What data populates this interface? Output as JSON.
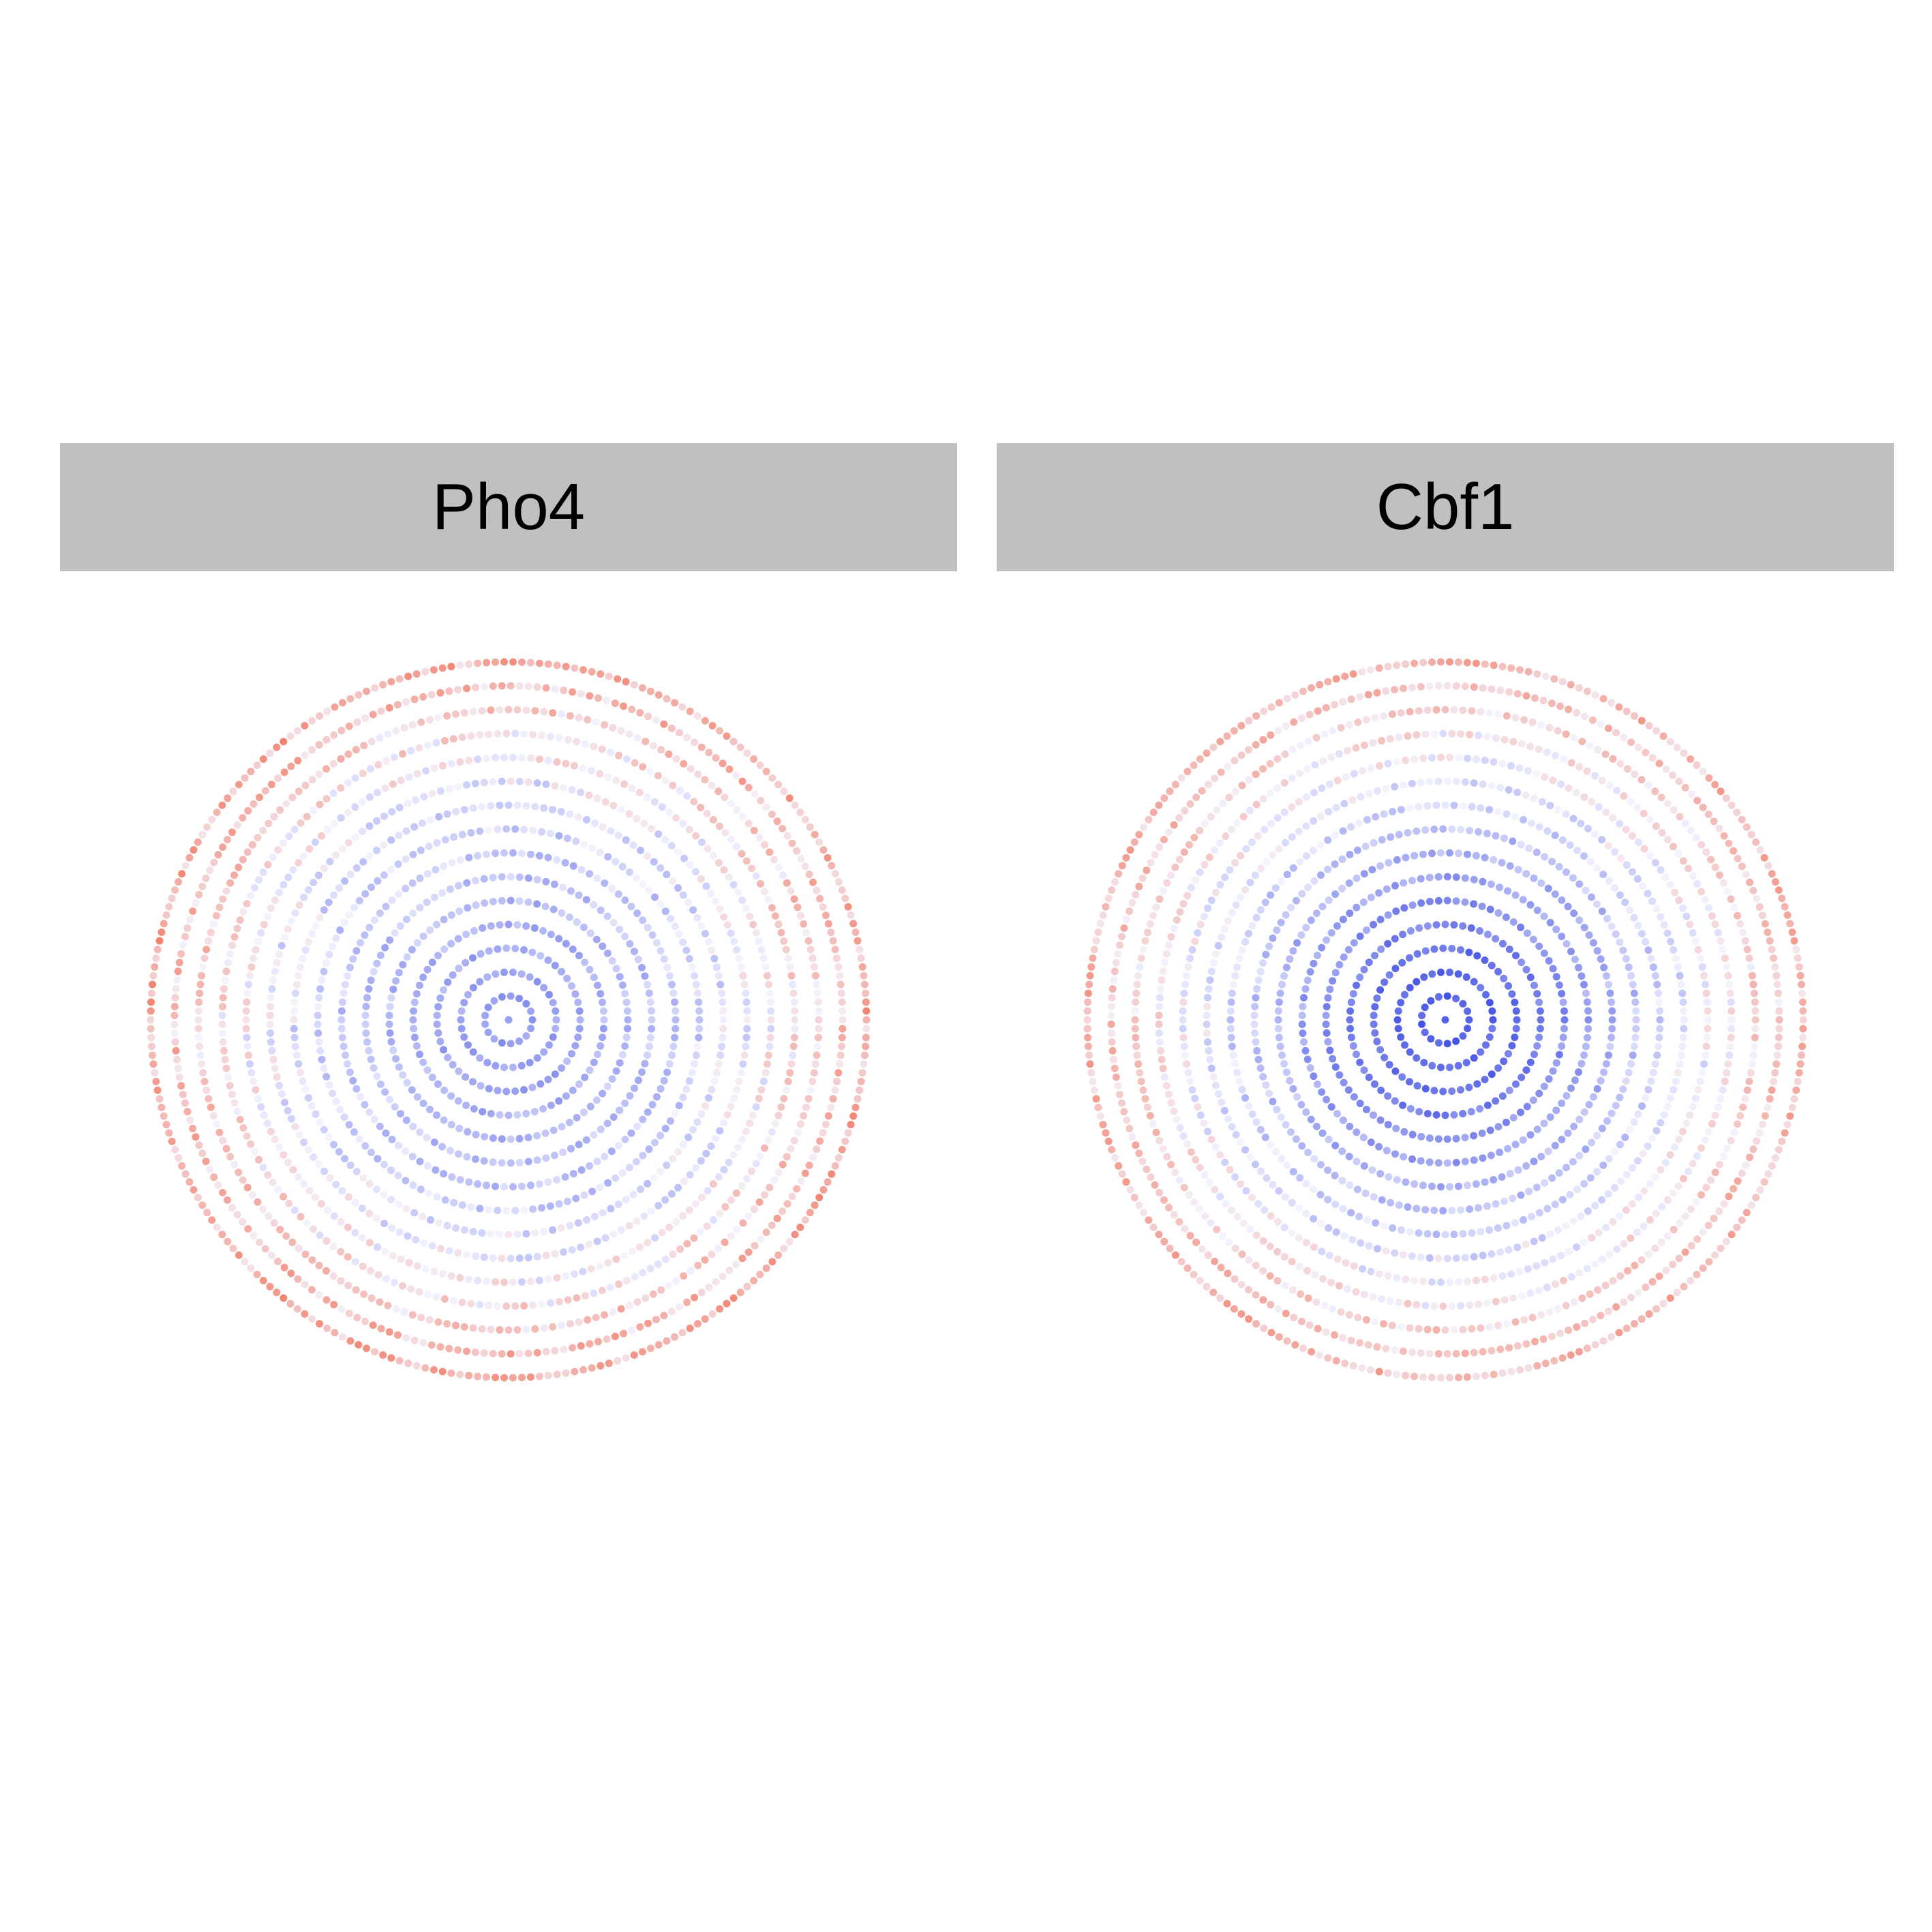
{
  "chart_data": {
    "type": "scatter",
    "layout": "facets",
    "coordinate_system": "polar",
    "grid": false,
    "axes_shown": false,
    "legend": "none",
    "colors": {
      "low": "#2233dd",
      "mid": "#f2f2ff",
      "high": "#f04a2a"
    },
    "ring_radii": [
      0,
      1,
      2,
      3,
      4,
      5,
      6,
      7,
      8,
      9,
      10,
      11,
      12,
      13,
      14,
      15
    ],
    "panels": [
      {
        "title": "Pho4",
        "ring_values": [
          -0.55,
          -0.55,
          -0.5,
          -0.45,
          -0.4,
          -0.35,
          -0.3,
          -0.25,
          -0.2,
          -0.12,
          -0.05,
          0.05,
          0.15,
          0.25,
          0.35,
          0.45
        ],
        "noise": 0.35
      },
      {
        "title": "Cbf1",
        "ring_values": [
          -0.95,
          -0.9,
          -0.85,
          -0.8,
          -0.7,
          -0.6,
          -0.5,
          -0.4,
          -0.3,
          -0.2,
          -0.1,
          0.0,
          0.1,
          0.2,
          0.3,
          0.38
        ],
        "noise": 0.3
      }
    ]
  }
}
